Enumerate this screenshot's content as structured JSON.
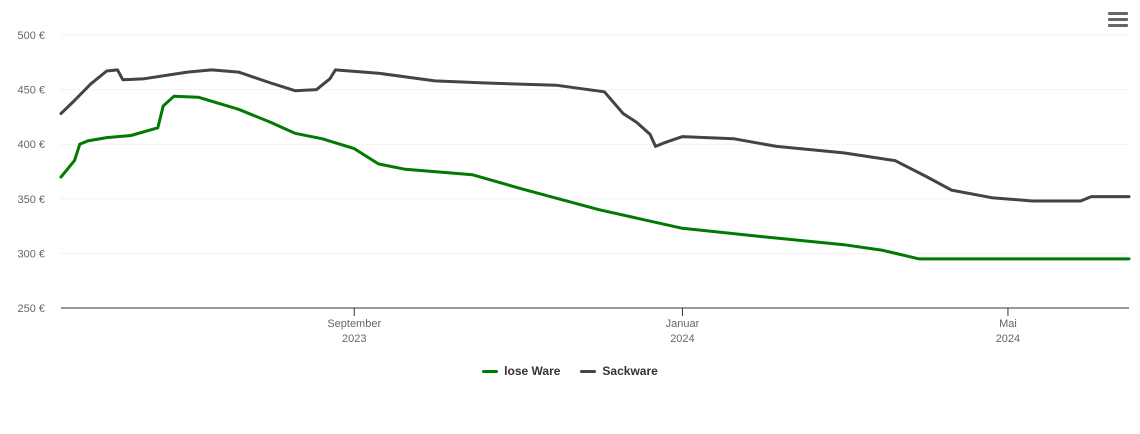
{
  "chart_data": {
    "type": "line",
    "title": "",
    "xlabel": "",
    "ylabel": "",
    "ylim": [
      250,
      500
    ],
    "xlim": [
      "2023-05-15",
      "2024-06-15"
    ],
    "y_ticks": [
      250,
      300,
      350,
      400,
      450,
      500
    ],
    "y_tick_labels": [
      "250 €",
      "300 €",
      "350 €",
      "400 €",
      "450 €",
      "500 €"
    ],
    "x_ticks": [
      {
        "date": "2023-09-01",
        "label_line1": "September",
        "label_line2": "2023"
      },
      {
        "date": "2024-01-01",
        "label_line1": "Januar",
        "label_line2": "2024"
      },
      {
        "date": "2024-05-01",
        "label_line1": "Mai",
        "label_line2": "2024"
      }
    ],
    "grid": true,
    "legend_position": "bottom-center",
    "series": [
      {
        "name": "lose Ware",
        "color": "#007a00",
        "points": [
          [
            "2023-05-15",
            370
          ],
          [
            "2023-05-20",
            385
          ],
          [
            "2023-05-22",
            400
          ],
          [
            "2023-05-25",
            403
          ],
          [
            "2023-06-01",
            406
          ],
          [
            "2023-06-10",
            408
          ],
          [
            "2023-06-20",
            415
          ],
          [
            "2023-06-22",
            435
          ],
          [
            "2023-06-26",
            444
          ],
          [
            "2023-07-05",
            443
          ],
          [
            "2023-07-20",
            432
          ],
          [
            "2023-08-01",
            420
          ],
          [
            "2023-08-10",
            410
          ],
          [
            "2023-08-20",
            405
          ],
          [
            "2023-09-01",
            396
          ],
          [
            "2023-09-10",
            382
          ],
          [
            "2023-09-20",
            377
          ],
          [
            "2023-10-15",
            372
          ],
          [
            "2023-11-01",
            360
          ],
          [
            "2023-12-01",
            340
          ],
          [
            "2024-01-01",
            323
          ],
          [
            "2024-02-01",
            315
          ],
          [
            "2024-03-01",
            308
          ],
          [
            "2024-03-15",
            303
          ],
          [
            "2024-03-29",
            295
          ],
          [
            "2024-05-01",
            295
          ],
          [
            "2024-06-15",
            295
          ]
        ]
      },
      {
        "name": "Sackware",
        "color": "#434348",
        "points": [
          [
            "2023-05-15",
            428
          ],
          [
            "2023-05-20",
            440
          ],
          [
            "2023-05-26",
            455
          ],
          [
            "2023-06-01",
            467
          ],
          [
            "2023-06-05",
            468
          ],
          [
            "2023-06-07",
            459
          ],
          [
            "2023-06-15",
            460
          ],
          [
            "2023-07-01",
            466
          ],
          [
            "2023-07-10",
            468
          ],
          [
            "2023-07-20",
            466
          ],
          [
            "2023-08-01",
            456
          ],
          [
            "2023-08-10",
            449
          ],
          [
            "2023-08-18",
            450
          ],
          [
            "2023-08-23",
            460
          ],
          [
            "2023-08-25",
            468
          ],
          [
            "2023-09-10",
            465
          ],
          [
            "2023-10-01",
            458
          ],
          [
            "2023-10-20",
            456
          ],
          [
            "2023-11-15",
            454
          ],
          [
            "2023-12-03",
            448
          ],
          [
            "2023-12-10",
            428
          ],
          [
            "2023-12-15",
            420
          ],
          [
            "2023-12-20",
            409
          ],
          [
            "2023-12-22",
            398
          ],
          [
            "2023-12-25",
            401
          ],
          [
            "2024-01-01",
            407
          ],
          [
            "2024-01-20",
            405
          ],
          [
            "2024-02-05",
            398
          ],
          [
            "2024-03-01",
            392
          ],
          [
            "2024-03-20",
            385
          ],
          [
            "2024-04-01",
            370
          ],
          [
            "2024-04-10",
            358
          ],
          [
            "2024-04-25",
            351
          ],
          [
            "2024-05-10",
            348
          ],
          [
            "2024-05-28",
            348
          ],
          [
            "2024-06-01",
            352
          ],
          [
            "2024-06-15",
            352
          ]
        ]
      }
    ]
  },
  "toolbar": {
    "menu_icon": "hamburger-menu-icon"
  }
}
